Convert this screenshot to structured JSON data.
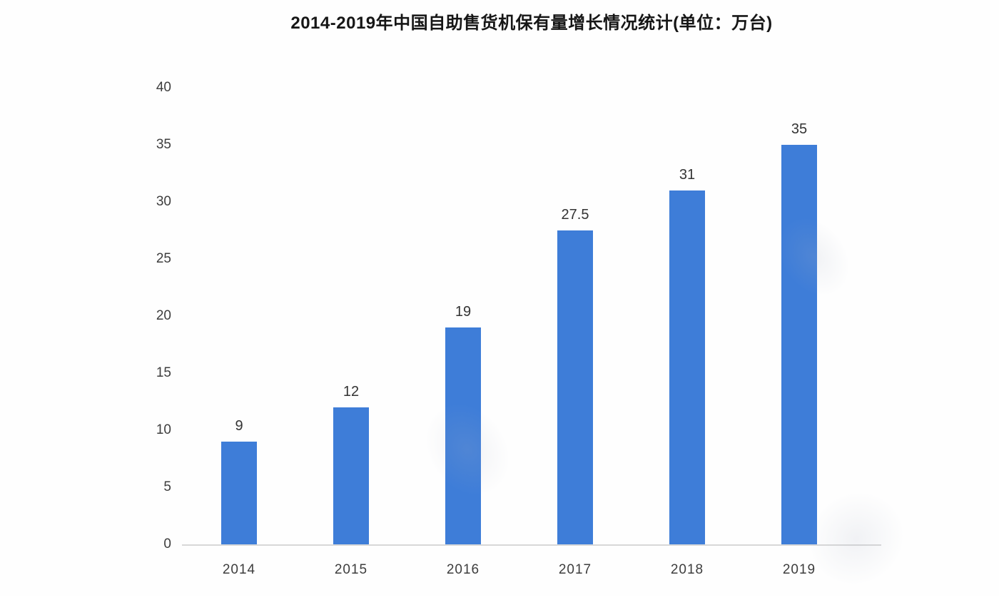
{
  "colors": {
    "bar": "#3E7DD8",
    "title_text": "#161616",
    "axis_text": "#3d3d3d",
    "baseline": "#d8d8d8",
    "background": "#fefefe"
  },
  "chart_data": {
    "type": "bar",
    "title": "2014-2019年中国自助售货机保有量增长情况统计(单位：万台)",
    "categories": [
      "2014",
      "2015",
      "2016",
      "2017",
      "2018",
      "2019"
    ],
    "values": [
      9,
      12,
      19,
      27.5,
      31,
      35
    ],
    "value_labels": [
      "9",
      "12",
      "19",
      "27.5",
      "31",
      "35"
    ],
    "unit": "万台",
    "xlabel": "",
    "ylabel": "",
    "ylim": [
      0,
      40
    ],
    "yticks": [
      0,
      5,
      10,
      15,
      20,
      25,
      30,
      35,
      40
    ],
    "grid": false,
    "legend": "none"
  }
}
